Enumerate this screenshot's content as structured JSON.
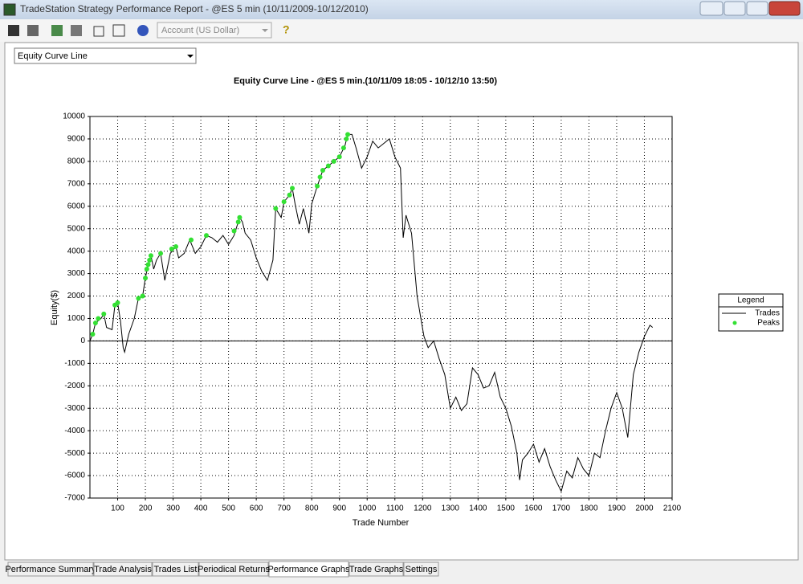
{
  "window": {
    "title": "TradeStation Strategy Performance Report - @ES 5 min (10/11/2009-10/12/2010)",
    "account": "Account (US Dollar)",
    "graph_select": "Equity Curve Line",
    "tabs": [
      "Performance Summary",
      "Trade Analysis",
      "Trades List",
      "Periodical Returns",
      "Performance Graphs",
      "Trade Graphs",
      "Settings"
    ]
  },
  "chart_data": {
    "type": "line",
    "title": "Equity Curve Line - @ES 5 min.(10/11/09 18:05 - 10/12/10 13:50)",
    "x_label": "Trade Number",
    "y_label": "Equity($)",
    "legend_title": "Legend",
    "legend": "right",
    "grid": true,
    "xlim": [
      0,
      2100
    ],
    "ylim": [
      -7000,
      10000
    ],
    "xticks": [
      100,
      200,
      300,
      400,
      500,
      600,
      700,
      800,
      900,
      1000,
      1100,
      1200,
      1300,
      1400,
      1500,
      1600,
      1700,
      1800,
      1900,
      2000,
      2100
    ],
    "yticks": [
      -7000,
      -6000,
      -5000,
      -4000,
      -3000,
      -2000,
      -1000,
      0,
      1000,
      2000,
      3000,
      4000,
      5000,
      6000,
      7000,
      8000,
      9000,
      10000
    ],
    "series": [
      {
        "name": "Trades",
        "color": "#000000",
        "x": [
          0,
          10,
          20,
          40,
          50,
          60,
          80,
          90,
          100,
          110,
          120,
          125,
          140,
          160,
          175,
          190,
          200,
          210,
          220,
          230,
          240,
          255,
          270,
          290,
          310,
          320,
          340,
          360,
          380,
          400,
          420,
          440,
          460,
          480,
          500,
          520,
          540,
          550,
          560,
          580,
          600,
          620,
          640,
          660,
          670,
          690,
          700,
          720,
          730,
          740,
          755,
          770,
          790,
          800,
          820,
          840,
          860,
          880,
          900,
          920,
          930,
          945,
          960,
          980,
          1000,
          1020,
          1040,
          1060,
          1080,
          1100,
          1120,
          1130,
          1140,
          1160,
          1180,
          1195,
          1205,
          1220,
          1240,
          1260,
          1280,
          1300,
          1320,
          1340,
          1360,
          1380,
          1400,
          1420,
          1440,
          1460,
          1480,
          1500,
          1520,
          1540,
          1550,
          1560,
          1580,
          1600,
          1620,
          1640,
          1660,
          1680,
          1700,
          1720,
          1740,
          1760,
          1780,
          1800,
          1820,
          1840,
          1860,
          1880,
          1900,
          1920,
          1940,
          1960,
          1980,
          2000,
          2020,
          2030
        ],
        "values": [
          0,
          300,
          800,
          1000,
          1200,
          600,
          500,
          1600,
          1700,
          900,
          -300,
          -500,
          300,
          1000,
          1900,
          2000,
          2800,
          3400,
          3800,
          3200,
          3600,
          3900,
          2700,
          3900,
          4200,
          3700,
          3900,
          4500,
          3900,
          4200,
          4700,
          4600,
          4400,
          4700,
          4300,
          4700,
          5500,
          5300,
          4800,
          4500,
          3700,
          3100,
          2700,
          3600,
          5900,
          5500,
          6200,
          6500,
          6800,
          6100,
          5200,
          5900,
          4800,
          6100,
          6900,
          7600,
          7800,
          8000,
          8200,
          8700,
          9200,
          9200,
          8600,
          7700,
          8200,
          8900,
          8600,
          8800,
          9000,
          8200,
          7700,
          4600,
          5600,
          4800,
          2000,
          900,
          200,
          -300,
          0,
          -800,
          -1500,
          -3000,
          -2500,
          -3100,
          -2800,
          -1200,
          -1500,
          -2100,
          -2000,
          -1400,
          -2500,
          -3000,
          -3800,
          -5000,
          -6200,
          -5300,
          -5000,
          -4600,
          -5400,
          -4800,
          -5600,
          -6200,
          -6700,
          -5800,
          -6100,
          -5200,
          -5700,
          -6000,
          -5000,
          -5200,
          -4000,
          -3000,
          -2300,
          -3000,
          -4300,
          -1500,
          -500,
          200,
          700,
          600
        ]
      },
      {
        "name": "Peaks",
        "color": "#33e033",
        "x": [
          10,
          20,
          30,
          50,
          90,
          100,
          175,
          190,
          200,
          205,
          210,
          215,
          220,
          255,
          295,
          310,
          365,
          420,
          520,
          535,
          540,
          670,
          700,
          720,
          730,
          820,
          830,
          840,
          860,
          880,
          900,
          915,
          925,
          930
        ],
        "values": [
          300,
          800,
          1000,
          1200,
          1600,
          1700,
          1900,
          2000,
          2800,
          3200,
          3400,
          3600,
          3800,
          3900,
          4100,
          4200,
          4500,
          4700,
          4900,
          5300,
          5500,
          5900,
          6200,
          6500,
          6800,
          6900,
          7300,
          7600,
          7800,
          8000,
          8200,
          8600,
          9000,
          9200
        ]
      }
    ]
  }
}
